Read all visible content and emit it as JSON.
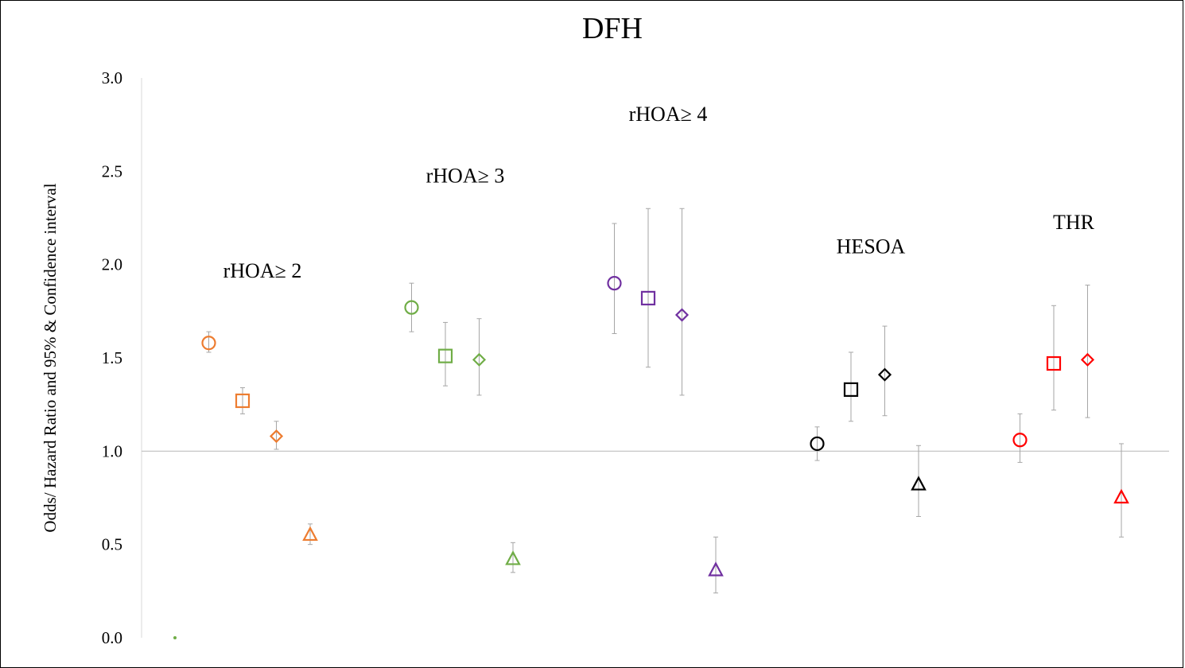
{
  "chart_data": {
    "type": "scatter",
    "title": "DFH",
    "ylabel": "Odds/ Hazard Ratio and 95% & Confidence interval",
    "xlabel": "",
    "ylim": [
      0,
      3
    ],
    "yticks": [
      "0.0",
      "0.5",
      "1.0",
      "1.5",
      "2.0",
      "2.5",
      "3.0"
    ],
    "reference_line": 1.0,
    "grid": false,
    "legend": "none",
    "stray_point": {
      "x": 1,
      "y": 0.0,
      "color": "#70ad47"
    },
    "groups": [
      {
        "label": "rHOA≥ 2",
        "color": "#ed7d31",
        "points": [
          {
            "x": 2,
            "marker": "circle",
            "value": 1.58,
            "low": 1.53,
            "high": 1.64
          },
          {
            "x": 3,
            "marker": "square",
            "value": 1.27,
            "low": 1.2,
            "high": 1.34
          },
          {
            "x": 4,
            "marker": "diamond",
            "value": 1.08,
            "low": 1.01,
            "high": 1.16
          },
          {
            "x": 5,
            "marker": "triangle",
            "value": 0.55,
            "low": 0.5,
            "high": 0.61
          }
        ]
      },
      {
        "label": "rHOA≥ 3",
        "color": "#70ad47",
        "points": [
          {
            "x": 8,
            "marker": "circle",
            "value": 1.77,
            "low": 1.64,
            "high": 1.9
          },
          {
            "x": 9,
            "marker": "square",
            "value": 1.51,
            "low": 1.35,
            "high": 1.69
          },
          {
            "x": 10,
            "marker": "diamond",
            "value": 1.49,
            "low": 1.3,
            "high": 1.71
          },
          {
            "x": 11,
            "marker": "triangle",
            "value": 0.42,
            "low": 0.35,
            "high": 0.51
          }
        ]
      },
      {
        "label": "rHOA≥ 4",
        "color": "#7030a0",
        "points": [
          {
            "x": 14,
            "marker": "circle",
            "value": 1.9,
            "low": 1.63,
            "high": 2.22
          },
          {
            "x": 15,
            "marker": "square",
            "value": 1.82,
            "low": 1.45,
            "high": 2.3
          },
          {
            "x": 16,
            "marker": "diamond",
            "value": 1.73,
            "low": 1.3,
            "high": 2.3
          },
          {
            "x": 17,
            "marker": "triangle",
            "value": 0.36,
            "low": 0.24,
            "high": 0.54
          }
        ]
      },
      {
        "label": "HESOA",
        "color": "#000000",
        "points": [
          {
            "x": 20,
            "marker": "circle",
            "value": 1.04,
            "low": 0.95,
            "high": 1.13
          },
          {
            "x": 21,
            "marker": "square",
            "value": 1.33,
            "low": 1.16,
            "high": 1.53
          },
          {
            "x": 22,
            "marker": "diamond",
            "value": 1.41,
            "low": 1.19,
            "high": 1.67
          },
          {
            "x": 23,
            "marker": "triangle",
            "value": 0.82,
            "low": 0.65,
            "high": 1.03
          }
        ]
      },
      {
        "label": "THR",
        "color": "#ff0000",
        "points": [
          {
            "x": 26,
            "marker": "circle",
            "value": 1.06,
            "low": 0.94,
            "high": 1.2
          },
          {
            "x": 27,
            "marker": "square",
            "value": 1.47,
            "low": 1.22,
            "high": 1.78
          },
          {
            "x": 28,
            "marker": "diamond",
            "value": 1.49,
            "low": 1.18,
            "high": 1.89
          },
          {
            "x": 29,
            "marker": "triangle",
            "value": 0.75,
            "low": 0.54,
            "high": 1.04
          }
        ]
      }
    ]
  }
}
